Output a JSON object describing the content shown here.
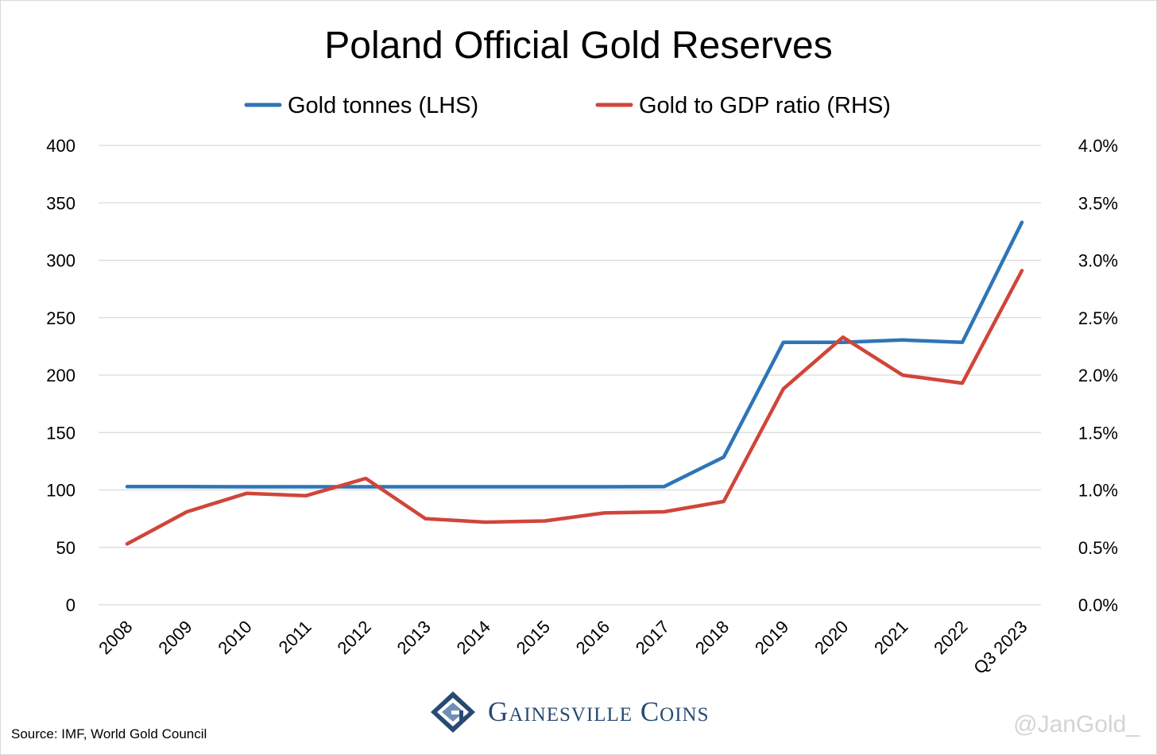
{
  "chart_data": {
    "type": "line",
    "title": "Poland Official Gold Reserves",
    "categories": [
      "2008",
      "2009",
      "2010",
      "2011",
      "2012",
      "2013",
      "2014",
      "2015",
      "2016",
      "2017",
      "2018",
      "2019",
      "2020",
      "2021",
      "2022",
      "Q3 2023"
    ],
    "series": [
      {
        "name": "Gold tonnes (LHS)",
        "axis": "left",
        "color": "#2e75b6",
        "values": [
          102.9,
          102.9,
          102.8,
          102.8,
          102.8,
          102.8,
          102.8,
          102.8,
          102.8,
          102.9,
          128.6,
          228.6,
          228.6,
          230.6,
          228.6,
          333.0
        ]
      },
      {
        "name": "Gold to GDP ratio (RHS)",
        "axis": "right",
        "color": "#d0453a",
        "values": [
          0.53,
          0.81,
          0.97,
          0.95,
          1.1,
          0.75,
          0.72,
          0.73,
          0.8,
          0.81,
          0.9,
          1.88,
          2.33,
          2.0,
          1.93,
          2.91
        ]
      }
    ],
    "y_left": {
      "min": 0,
      "max": 400,
      "ticks": [
        "0",
        "50",
        "100",
        "150",
        "200",
        "250",
        "300",
        "350",
        "400"
      ]
    },
    "y_right": {
      "min": 0,
      "max": 4.0,
      "ticks": [
        "0.0%",
        "0.5%",
        "1.0%",
        "1.5%",
        "2.0%",
        "2.5%",
        "3.0%",
        "3.5%",
        "4.0%"
      ]
    },
    "grid": true,
    "legend": "top-center",
    "gridline_color": "#d9d9d9"
  },
  "footer": {
    "source": "Source: IMF, World Gold Council",
    "brand": "Gainesville Coins",
    "watermark": "@JanGold_",
    "brand_color": "#284a72"
  }
}
